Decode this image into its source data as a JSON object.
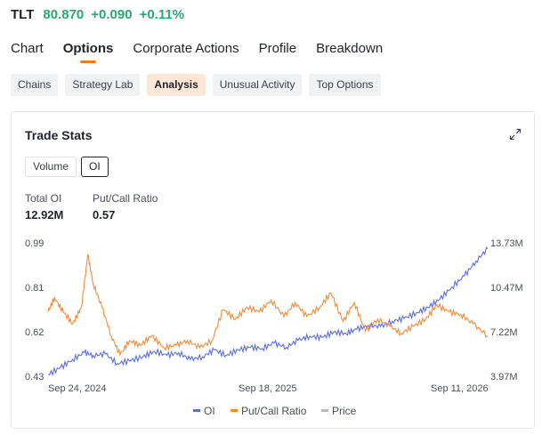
{
  "quote": {
    "symbol": "TLT",
    "price": "80.870",
    "change": "+0.090",
    "change_pct": "+0.11%"
  },
  "tabs": [
    {
      "label": "Chart"
    },
    {
      "label": "Options"
    },
    {
      "label": "Corporate Actions"
    },
    {
      "label": "Profile"
    },
    {
      "label": "Breakdown"
    }
  ],
  "active_tab": "Options",
  "subtabs": [
    {
      "label": "Chains"
    },
    {
      "label": "Strategy Lab"
    },
    {
      "label": "Analysis"
    },
    {
      "label": "Unusual Activity"
    },
    {
      "label": "Top Options"
    }
  ],
  "active_subtab": "Analysis",
  "card": {
    "title": "Trade Stats",
    "toggle_volume": "Volume",
    "toggle_oi": "OI",
    "active_toggle": "OI",
    "stats": {
      "total_oi_label": "Total OI",
      "total_oi_value": "12.92M",
      "pcr_label": "Put/Call Ratio",
      "pcr_value": "0.57"
    }
  },
  "colors": {
    "accent": "#f07a22",
    "up": "#2aa872",
    "oi_line": "#5b6ee1",
    "pcr_line": "#f08c3a",
    "price_line": "#b8bcc4"
  },
  "icons": {
    "expand": "expand-icon"
  },
  "chart_data": {
    "type": "line",
    "x_ticks": [
      "Sep 24, 2024",
      "Sep 18, 2025",
      "Sep 11, 2026"
    ],
    "x_range": [
      "2024-09-24",
      "2026-10-15"
    ],
    "left_axis": {
      "ticks": [
        "0.99",
        "0.81",
        "0.62",
        "0.43"
      ],
      "ylim": [
        0.43,
        0.99
      ]
    },
    "right_axis": {
      "ticks": [
        "13.73M",
        "10.47M",
        "7.22M",
        "3.97M"
      ],
      "ylim": [
        3.97,
        13.73
      ],
      "unit": "M"
    },
    "legend": [
      "OI",
      "Put/Call Ratio",
      "Price"
    ],
    "legend_position": "bottom",
    "grid": false,
    "series": [
      {
        "name": "OI",
        "axis": "right",
        "x": [
          "2024-09-24",
          "2024-10-15",
          "2024-11-05",
          "2024-11-25",
          "2024-12-10",
          "2024-12-31",
          "2025-01-20",
          "2025-02-10",
          "2025-03-05",
          "2025-03-25",
          "2025-04-15",
          "2025-05-05",
          "2025-05-25",
          "2025-06-15",
          "2025-07-05",
          "2025-07-25",
          "2025-08-15",
          "2025-09-05",
          "2025-09-25",
          "2025-10-15",
          "2025-11-05",
          "2025-11-25",
          "2025-12-15",
          "2026-01-05",
          "2026-01-25",
          "2026-02-15",
          "2026-03-05",
          "2026-03-25",
          "2026-04-15",
          "2026-05-05",
          "2026-05-25",
          "2026-06-15",
          "2026-07-05",
          "2026-07-25",
          "2026-08-15",
          "2026-09-05",
          "2026-09-25",
          "2026-10-15"
        ],
        "values": [
          4.1,
          4.6,
          5.2,
          5.7,
          5.5,
          5.6,
          4.9,
          5.1,
          5.4,
          5.8,
          5.5,
          5.7,
          5.2,
          5.4,
          5.9,
          5.5,
          5.9,
          6.1,
          6.0,
          6.4,
          6.1,
          6.6,
          6.9,
          6.8,
          7.2,
          7.1,
          7.4,
          7.7,
          7.6,
          8.0,
          8.2,
          8.6,
          9.0,
          9.6,
          10.5,
          11.3,
          12.4,
          13.3
        ]
      },
      {
        "name": "Put/Call Ratio",
        "axis": "left",
        "x": [
          "2024-09-24",
          "2024-10-05",
          "2024-10-20",
          "2024-11-05",
          "2024-11-20",
          "2024-12-01",
          "2024-12-10",
          "2024-12-25",
          "2025-01-10",
          "2025-01-25",
          "2025-02-10",
          "2025-03-01",
          "2025-03-20",
          "2025-04-10",
          "2025-05-01",
          "2025-05-20",
          "2025-06-10",
          "2025-07-01",
          "2025-07-20",
          "2025-08-10",
          "2025-08-30",
          "2025-09-20",
          "2025-10-10",
          "2025-11-01",
          "2025-11-20",
          "2025-12-10",
          "2026-01-01",
          "2026-01-20",
          "2026-02-10",
          "2026-03-01",
          "2026-03-20",
          "2026-04-10",
          "2026-05-01",
          "2026-05-20",
          "2026-06-10",
          "2026-07-01",
          "2026-07-20",
          "2026-08-10",
          "2026-08-30",
          "2026-09-20",
          "2026-10-15"
        ],
        "values": [
          0.7,
          0.76,
          0.7,
          0.65,
          0.72,
          0.94,
          0.82,
          0.72,
          0.6,
          0.52,
          0.58,
          0.56,
          0.6,
          0.55,
          0.56,
          0.58,
          0.55,
          0.58,
          0.71,
          0.67,
          0.72,
          0.7,
          0.75,
          0.68,
          0.74,
          0.68,
          0.72,
          0.78,
          0.66,
          0.74,
          0.62,
          0.67,
          0.64,
          0.61,
          0.64,
          0.67,
          0.73,
          0.7,
          0.69,
          0.65,
          0.6
        ]
      },
      {
        "name": "Price",
        "axis": "hidden",
        "x": [],
        "values": []
      }
    ]
  }
}
